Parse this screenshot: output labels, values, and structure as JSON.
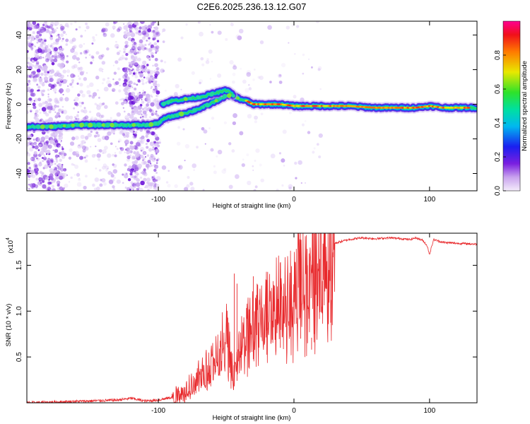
{
  "chart_data": [
    {
      "type": "heatmap",
      "title": "C2E6.2025.236.13.12.G07",
      "xlabel": "Height of straight line (km)",
      "ylabel": "Frequency (Hz)",
      "xlim": [
        -197,
        135
      ],
      "ylim": [
        -50,
        48
      ],
      "xticks": [
        -100,
        0,
        100
      ],
      "xtick_labels": [
        "-100",
        "0",
        "100"
      ],
      "yticks": [
        -40,
        -20,
        0,
        20,
        40
      ],
      "ytick_labels": [
        "-40",
        "-20",
        "0",
        "20",
        "40"
      ],
      "colorbar": {
        "label": "Normalized spectral amplitude",
        "range": [
          0,
          1
        ],
        "ticks": [
          0.0,
          0.2,
          0.4,
          0.6,
          0.8
        ],
        "tick_labels": [
          "0.0",
          "0.2",
          "0.4",
          "0.6",
          "0.8"
        ]
      },
      "trace_upper": {
        "x": [
          -197,
          -180,
          -160,
          -140,
          -120,
          -108,
          -100,
          -95,
          -90,
          -85,
          -75,
          -65,
          -55,
          -50,
          -45,
          -40,
          -35,
          -30,
          -20,
          -10,
          0,
          10,
          20,
          40,
          60,
          80,
          90,
          100,
          110,
          120,
          135
        ],
        "y": [
          -13,
          -13,
          -12,
          -12,
          -12,
          -12,
          -11,
          -8,
          -7,
          -6,
          -4,
          -1,
          3,
          5,
          5,
          3,
          2,
          0,
          0,
          0,
          -1,
          -1,
          -1,
          -1,
          -2,
          -2,
          -2,
          -1,
          -2,
          -2,
          -2
        ]
      },
      "trace_branch": {
        "x": [
          -97,
          -90,
          -80,
          -70,
          -60,
          -55,
          -50,
          -47,
          -45
        ],
        "y": [
          0,
          2,
          3,
          4,
          6,
          7,
          8,
          7,
          5
        ]
      },
      "noise_bands_x": [
        [
          -197,
          -170
        ],
        [
          -125,
          -100
        ]
      ]
    },
    {
      "type": "line",
      "xlabel": "Height of straight line (km)",
      "ylabel": "SNR (10 * v/v)",
      "multiplier_label": "(x10",
      "multiplier_exp": "4",
      "xlim": [
        -197,
        135
      ],
      "ylim": [
        0,
        1.85
      ],
      "xticks": [
        -100,
        0,
        100
      ],
      "xtick_labels": [
        "-100",
        "0",
        "100"
      ],
      "yticks": [
        0.5,
        1.0,
        1.5
      ],
      "ytick_labels": [
        "0.5",
        "1.0",
        "1.5"
      ],
      "color": "#e8292c",
      "envelope": {
        "x": [
          -197,
          -150,
          -130,
          -120,
          -110,
          -100,
          -90,
          -80,
          -70,
          -60,
          -55,
          -50,
          -45,
          -40,
          -35,
          -30,
          -25,
          -20,
          -15,
          -10,
          -5,
          0,
          5,
          10,
          15,
          20,
          25,
          30,
          40,
          50,
          60,
          70,
          80,
          85,
          90,
          95,
          98,
          100,
          103,
          110,
          120,
          135
        ],
        "y": [
          0.0,
          0.02,
          0.03,
          0.05,
          0.02,
          0.03,
          0.06,
          0.12,
          0.3,
          0.45,
          0.6,
          0.8,
          0.3,
          0.6,
          0.75,
          0.95,
          0.9,
          1.05,
          1.1,
          1.2,
          1.15,
          1.25,
          1.4,
          1.3,
          1.5,
          1.55,
          1.68,
          1.74,
          1.78,
          1.8,
          1.79,
          1.8,
          1.79,
          1.78,
          1.8,
          1.77,
          1.72,
          1.62,
          1.78,
          1.75,
          1.74,
          1.73
        ]
      },
      "spikes": {
        "x": [
          -44,
          -42,
          -30,
          -20,
          -10,
          5,
          10,
          13,
          15
        ],
        "y": [
          1.41,
          1.3,
          1.38,
          1.34,
          1.46,
          1.2,
          1.5,
          0.58,
          1.88
        ]
      }
    }
  ]
}
